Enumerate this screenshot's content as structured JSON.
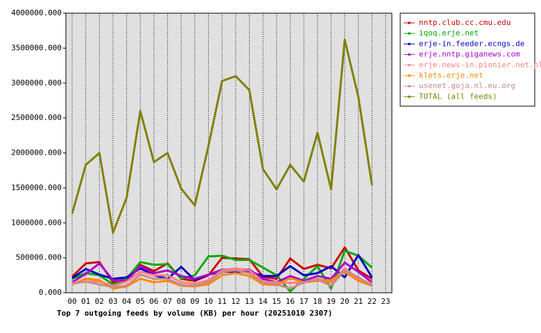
{
  "chart_data": {
    "type": "line",
    "title": "Top 7 outgoing feeds by volume (KB) per hour (20251010 2307)",
    "categories": [
      "00",
      "01",
      "02",
      "03",
      "04",
      "05",
      "06",
      "07",
      "08",
      "09",
      "10",
      "11",
      "12",
      "13",
      "14",
      "15",
      "16",
      "17",
      "18",
      "19",
      "20",
      "21",
      "22",
      "23"
    ],
    "ylim": [
      0,
      4000000
    ],
    "yticks": [
      {
        "value": 0,
        "label": "0.000"
      },
      {
        "value": 500000,
        "label": "500000.000"
      },
      {
        "value": 1000000,
        "label": "1000000.000"
      },
      {
        "value": 1500000,
        "label": "1500000.000"
      },
      {
        "value": 2000000,
        "label": "2000000.000"
      },
      {
        "value": 2500000,
        "label": "2500000.000"
      },
      {
        "value": 3000000,
        "label": "3000000.000"
      },
      {
        "value": 3500000,
        "label": "3500000.000"
      },
      {
        "value": 4000000,
        "label": "4000000.000"
      }
    ],
    "grid": true,
    "legend": "right",
    "series": [
      {
        "name": "nntp.club.cc.cmu.edu",
        "color": "#cc0000",
        "values": [
          230000,
          420000,
          440000,
          150000,
          200000,
          400000,
          310000,
          420000,
          200000,
          170000,
          250000,
          500000,
          490000,
          480000,
          230000,
          200000,
          490000,
          340000,
          400000,
          350000,
          650000,
          320000,
          200000,
          null
        ]
      },
      {
        "name": "iqoq.erje.net",
        "color": "#00aa00",
        "values": [
          200000,
          280000,
          250000,
          120000,
          200000,
          440000,
          400000,
          410000,
          200000,
          250000,
          520000,
          530000,
          470000,
          470000,
          360000,
          250000,
          20000,
          200000,
          380000,
          60000,
          600000,
          530000,
          360000,
          null
        ]
      },
      {
        "name": "erje-in.feeder.ecngs.de",
        "color": "#0000cc",
        "values": [
          210000,
          340000,
          260000,
          200000,
          220000,
          350000,
          250000,
          200000,
          370000,
          180000,
          260000,
          300000,
          300000,
          300000,
          240000,
          240000,
          380000,
          250000,
          280000,
          380000,
          220000,
          540000,
          220000,
          null
        ]
      },
      {
        "name": "erje.nntp.giganews.com",
        "color": "#aa00cc",
        "values": [
          150000,
          270000,
          420000,
          180000,
          170000,
          380000,
          280000,
          320000,
          240000,
          200000,
          260000,
          330000,
          340000,
          330000,
          200000,
          150000,
          240000,
          170000,
          240000,
          200000,
          430000,
          300000,
          150000,
          null
        ]
      },
      {
        "name": "erje.news-in.pionier.net.pl",
        "color": "#ff8080",
        "values": [
          140000,
          160000,
          160000,
          100000,
          160000,
          300000,
          250000,
          250000,
          150000,
          130000,
          180000,
          320000,
          350000,
          320000,
          160000,
          150000,
          140000,
          150000,
          200000,
          150000,
          350000,
          200000,
          130000,
          null
        ]
      },
      {
        "name": "klots.erje.net",
        "color": "#ff8800",
        "values": [
          120000,
          200000,
          180000,
          60000,
          90000,
          200000,
          150000,
          170000,
          100000,
          90000,
          120000,
          250000,
          280000,
          240000,
          120000,
          110000,
          210000,
          150000,
          170000,
          180000,
          300000,
          170000,
          100000,
          null
        ]
      },
      {
        "name": "usenet.goja.nl.eu.org",
        "color": "#cc8888",
        "values": [
          130000,
          160000,
          120000,
          80000,
          100000,
          260000,
          200000,
          200000,
          110000,
          100000,
          150000,
          300000,
          320000,
          280000,
          140000,
          120000,
          60000,
          150000,
          190000,
          100000,
          320000,
          220000,
          100000,
          null
        ]
      },
      {
        "name": "TOTAL (all feeds)",
        "color": "#808000",
        "values": [
          1130000,
          1830000,
          2000000,
          860000,
          1360000,
          2600000,
          1870000,
          2000000,
          1490000,
          1250000,
          2100000,
          3030000,
          3100000,
          2900000,
          1770000,
          1480000,
          1830000,
          1590000,
          2290000,
          1480000,
          3620000,
          2800000,
          1540000,
          null
        ]
      }
    ]
  }
}
